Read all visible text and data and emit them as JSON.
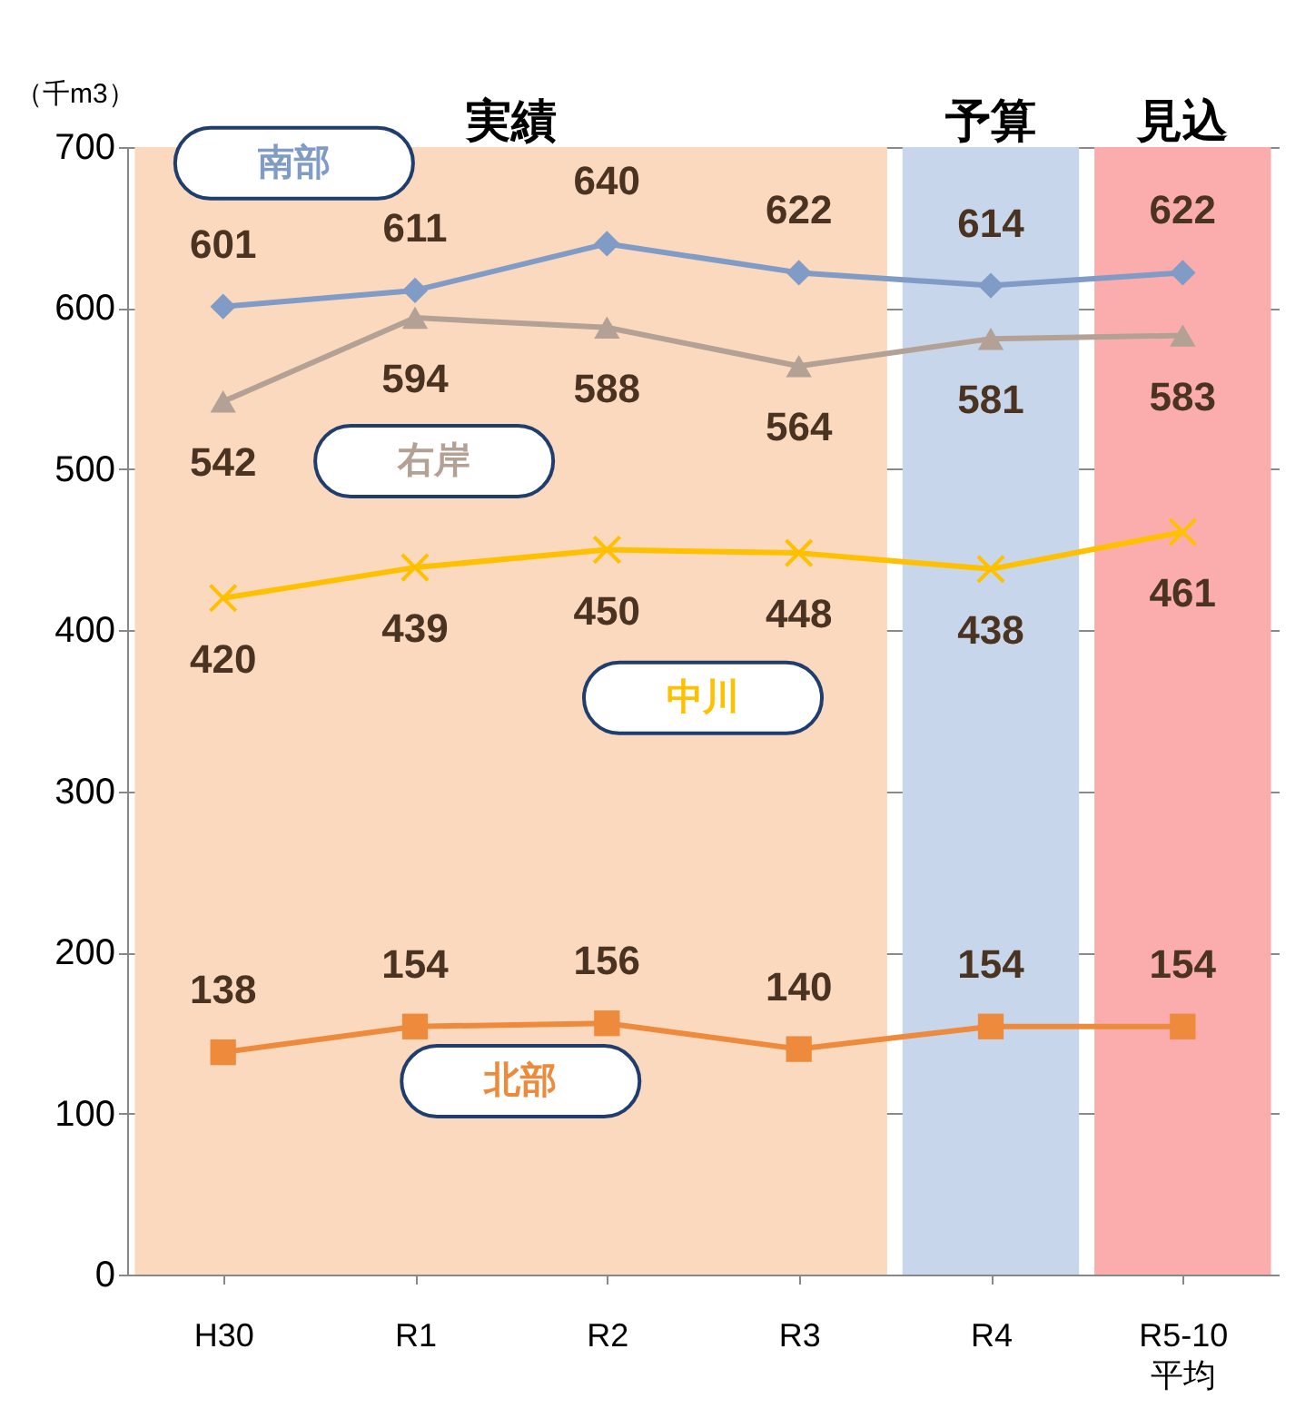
{
  "chart_data": {
    "type": "line",
    "ylabel": "（千m3）",
    "categories": [
      "H30",
      "R1",
      "R2",
      "R3",
      "R4",
      "R5-10\n平均"
    ],
    "series": [
      {
        "name": "南部",
        "color": "#7f9bc6",
        "marker": "diamond",
        "values": [
          601,
          611,
          640,
          622,
          614,
          622
        ]
      },
      {
        "name": "右岸",
        "color": "#b3a195",
        "marker": "triangle",
        "values": [
          542,
          594,
          588,
          564,
          581,
          583
        ]
      },
      {
        "name": "中川",
        "color": "#ffc000",
        "marker": "cross",
        "values": [
          420,
          439,
          450,
          448,
          438,
          461
        ]
      },
      {
        "name": "北部",
        "color": "#ee8a3c",
        "marker": "square",
        "values": [
          138,
          154,
          156,
          140,
          154,
          154
        ]
      }
    ],
    "ylim": [
      0,
      700
    ],
    "yticks": [
      0,
      100,
      200,
      300,
      400,
      500,
      600,
      700
    ],
    "grid": "y",
    "data_labels": true,
    "bands": [
      {
        "axis": "x",
        "from": "H30",
        "to": "R3",
        "label": "実績",
        "color": "#fbd9be"
      },
      {
        "axis": "x",
        "from": "R4",
        "to": "R4",
        "label": "予算",
        "color": "#c7d6eb"
      },
      {
        "axis": "x",
        "from": "R5-10\n平均",
        "to": "R5-10\n平均",
        "label": "見込",
        "color": "#fbadad"
      }
    ]
  }
}
